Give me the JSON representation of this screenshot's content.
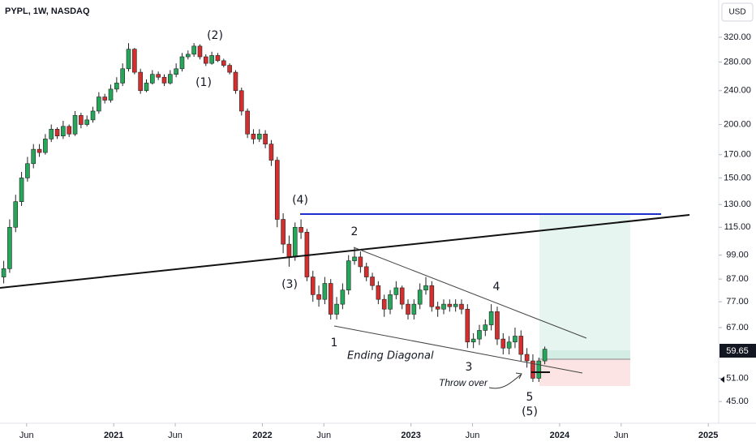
{
  "chart_data": {
    "type": "candlestick",
    "title": "PYPL, 1W, NASDAQ",
    "currency": "USD",
    "log_scale": true,
    "grid": false,
    "up_color": "#26a65b",
    "down_color": "#d32f2f",
    "x": [
      2020.26,
      2020.3,
      2020.34,
      2020.38,
      2020.42,
      2020.46,
      2020.5,
      2020.54,
      2020.58,
      2020.62,
      2020.66,
      2020.7,
      2020.74,
      2020.78,
      2020.82,
      2020.86,
      2020.9,
      2020.94,
      2020.98,
      2021.02,
      2021.06,
      2021.1,
      2021.14,
      2021.18,
      2021.22,
      2021.26,
      2021.3,
      2021.34,
      2021.38,
      2021.42,
      2021.46,
      2021.5,
      2021.54,
      2021.58,
      2021.62,
      2021.66,
      2021.7,
      2021.74,
      2021.78,
      2021.82,
      2021.86,
      2021.9,
      2021.94,
      2021.98,
      2022.02,
      2022.06,
      2022.1,
      2022.14,
      2022.18,
      2022.22,
      2022.26,
      2022.3,
      2022.34,
      2022.38,
      2022.42,
      2022.46,
      2022.5,
      2022.54,
      2022.58,
      2022.62,
      2022.66,
      2022.7,
      2022.74,
      2022.78,
      2022.82,
      2022.86,
      2022.9,
      2022.94,
      2022.98,
      2023.02,
      2023.06,
      2023.1,
      2023.14,
      2023.18,
      2023.22,
      2023.26,
      2023.3,
      2023.34,
      2023.38,
      2023.42,
      2023.46,
      2023.5,
      2023.54,
      2023.58,
      2023.62,
      2023.66,
      2023.7,
      2023.74,
      2023.78,
      2023.82,
      2023.86,
      2023.9
    ],
    "open": [
      88,
      92,
      115,
      132,
      150,
      162,
      175,
      172,
      185,
      195,
      188,
      198,
      190,
      210,
      200,
      205,
      215,
      232,
      228,
      242,
      250,
      270,
      300,
      265,
      240,
      250,
      262,
      258,
      250,
      262,
      270,
      288,
      292,
      305,
      288,
      278,
      290,
      282,
      275,
      265,
      240,
      215,
      190,
      185,
      190,
      180,
      165,
      120,
      105,
      98,
      115,
      112,
      88,
      80,
      78,
      85,
      72,
      76,
      82,
      96,
      98,
      93,
      88,
      84,
      78,
      74,
      80,
      83,
      76,
      72,
      76,
      82,
      84,
      75,
      74,
      76,
      75,
      76,
      74,
      62,
      63,
      66,
      68,
      73,
      63,
      60,
      62,
      64,
      58,
      56,
      51,
      56
    ],
    "high": [
      96,
      120,
      137,
      155,
      168,
      180,
      180,
      190,
      200,
      197,
      204,
      200,
      215,
      213,
      210,
      220,
      238,
      236,
      248,
      258,
      278,
      310,
      302,
      270,
      255,
      268,
      266,
      262,
      268,
      278,
      294,
      298,
      310,
      308,
      292,
      296,
      294,
      285,
      278,
      268,
      244,
      218,
      195,
      195,
      194,
      184,
      168,
      124,
      110,
      118,
      120,
      114,
      91,
      84,
      88,
      87,
      79,
      85,
      99,
      103,
      101,
      95,
      90,
      86,
      80,
      82,
      86,
      84,
      78,
      78,
      85,
      88,
      86,
      77,
      78,
      78,
      78,
      78,
      76,
      65,
      68,
      70,
      76,
      75,
      65,
      64,
      67,
      66,
      60,
      58,
      57,
      60.5
    ],
    "low": [
      85,
      90,
      112,
      129,
      147,
      158,
      168,
      170,
      182,
      185,
      185,
      187,
      188,
      196,
      198,
      202,
      212,
      224,
      225,
      238,
      246,
      266,
      262,
      236,
      238,
      248,
      254,
      246,
      248,
      258,
      266,
      284,
      288,
      284,
      274,
      276,
      280,
      272,
      262,
      236,
      210,
      186,
      180,
      182,
      176,
      160,
      115,
      100,
      93,
      96,
      108,
      86,
      77,
      75,
      76,
      70,
      70,
      74,
      80,
      94,
      90,
      86,
      82,
      76,
      71,
      72,
      78,
      74,
      70,
      70,
      74,
      80,
      73,
      71,
      72,
      73,
      73,
      72,
      60,
      60,
      61,
      64,
      66,
      61,
      58,
      58,
      60,
      56,
      54,
      50,
      50,
      55
    ],
    "close": [
      92,
      115,
      132,
      150,
      162,
      175,
      172,
      185,
      195,
      188,
      198,
      190,
      210,
      200,
      205,
      215,
      232,
      228,
      242,
      250,
      270,
      300,
      265,
      240,
      250,
      262,
      258,
      250,
      262,
      270,
      288,
      292,
      305,
      288,
      278,
      290,
      282,
      275,
      265,
      240,
      215,
      190,
      185,
      190,
      180,
      165,
      120,
      105,
      98,
      115,
      112,
      88,
      80,
      78,
      85,
      72,
      76,
      82,
      96,
      98,
      93,
      88,
      84,
      78,
      74,
      80,
      83,
      76,
      72,
      76,
      82,
      84,
      75,
      74,
      76,
      75,
      76,
      74,
      62,
      63,
      66,
      68,
      73,
      63,
      60,
      62,
      64,
      58,
      56,
      51,
      56,
      59.65
    ],
    "ylim": [
      39.5,
      391
    ],
    "yticks": [
      {
        "value": 320,
        "label": "320.00"
      },
      {
        "value": 280,
        "label": "280.00"
      },
      {
        "value": 240,
        "label": "240.00"
      },
      {
        "value": 200,
        "label": "200.00"
      },
      {
        "value": 170,
        "label": "170.00"
      },
      {
        "value": 150,
        "label": "150.00"
      },
      {
        "value": 130,
        "label": "130.00"
      },
      {
        "value": 115,
        "label": "115.00"
      },
      {
        "value": 99,
        "label": "99.00"
      },
      {
        "value": 87,
        "label": "87.00"
      },
      {
        "value": 77,
        "label": "77.00"
      },
      {
        "value": 67,
        "label": "67.00"
      },
      {
        "value": 51,
        "label": "51.00"
      },
      {
        "value": 45,
        "label": "45.00"
      }
    ],
    "xlim": [
      2020.235,
      2025.07
    ],
    "xticks": [
      {
        "value": 2020.414,
        "label": "Jun"
      },
      {
        "value": 2021,
        "label": "2021"
      },
      {
        "value": 2021.414,
        "label": "Jun"
      },
      {
        "value": 2022,
        "label": "2022"
      },
      {
        "value": 2022.414,
        "label": "Jun"
      },
      {
        "value": 2023,
        "label": "2023"
      },
      {
        "value": 2023.414,
        "label": "Jun"
      },
      {
        "value": 2024,
        "label": "2024"
      },
      {
        "value": 2024.414,
        "label": "Jun"
      },
      {
        "value": 2025,
        "label": "2025"
      }
    ],
    "last_price_label": "59.65",
    "annotations": [
      "(2)",
      "(1)",
      "(4)",
      "(3)",
      "2",
      "1",
      "4",
      "3",
      "5",
      "(5)",
      "Ending Diagonal",
      "Throw over"
    ]
  }
}
